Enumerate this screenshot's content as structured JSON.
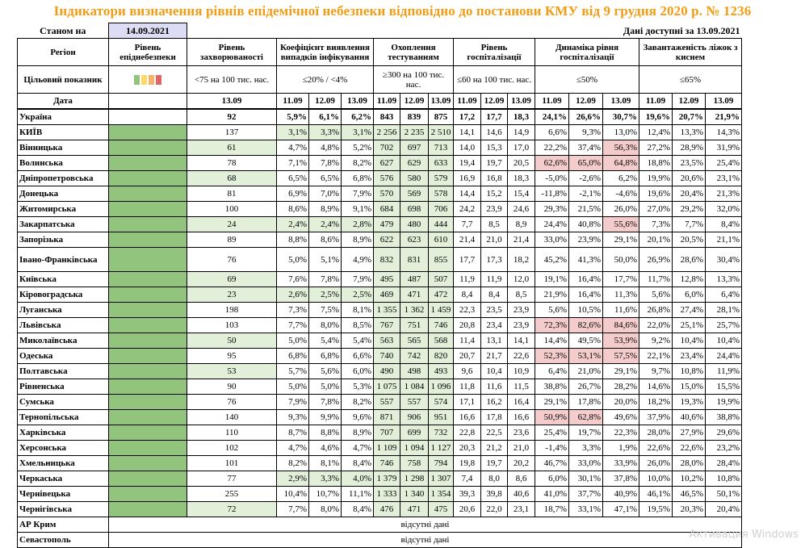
{
  "title": "Індикатори визначення рівнів епідемічної небезпеки відповідно до постанови КМУ від 9 грудня 2020 р. № 1236",
  "as_of_label": "Станом на",
  "as_of_date": "14.09.2021",
  "data_available": "Дані доступні за 13.09.2021",
  "headers": {
    "region": "Регіон",
    "level": "Рівень епіднебезпеки",
    "incidence": "Рівень захворюваності",
    "detection": "Коефіцієнт виявлення випадків інфікування",
    "testing": "Охоплення тестуванням",
    "hosp": "Рівень госпіталізації",
    "hosp_dyn": "Динаміка рівня госпіталізації",
    "oxygen": "Завантаженість ліжок з киснем"
  },
  "target": {
    "label": "Цільовий показник",
    "incidence": "<75 на 100 тис. нас.",
    "detection": "≤20% / <4%",
    "testing": "≥300 на 100 тис. нас.",
    "hosp": "≤60 на 100 тис. нас.",
    "hosp_dyn": "≤50%",
    "oxygen": "≤65%"
  },
  "date_row": {
    "label": "Дата",
    "incidence": "13.09",
    "d1": "11.09",
    "d2": "12.09",
    "d3": "13.09"
  },
  "colors": {
    "green_cell": "#e2efd9",
    "red_cell": "#f4cccc",
    "level_green": "#92c47d",
    "title": "#f39c12"
  },
  "swatches": [
    "#92c47d",
    "#ffd966",
    "#f6b26b",
    "#e06666"
  ],
  "unavailable": "відсутні дані",
  "rows": [
    {
      "region": "Україна",
      "bold": true,
      "inc": "92",
      "det": [
        "5,9%",
        "6,1%",
        "6,2%"
      ],
      "test": [
        "843",
        "839",
        "875"
      ],
      "hosp": [
        "17,2",
        "17,7",
        "18,3"
      ],
      "dyn": [
        "24,1%",
        "26,6%",
        "30,7%"
      ],
      "oxy": [
        "19,6%",
        "20,7%",
        "21,9%"
      ],
      "total": true
    },
    {
      "region": "КИЇВ",
      "inc": "137",
      "det": [
        "3,1%",
        "3,3%",
        "3,1%"
      ],
      "detg": [
        1,
        1,
        1
      ],
      "test": [
        "2 256",
        "2 235",
        "2 510"
      ],
      "hosp": [
        "14,1",
        "14,6",
        "14,9"
      ],
      "dyn": [
        "6,6%",
        "9,3%",
        "13,0%"
      ],
      "oxy": [
        "12,4%",
        "13,3%",
        "14,3%"
      ]
    },
    {
      "region": "Вінницька",
      "inc": "61",
      "incg": 1,
      "det": [
        "4,7%",
        "4,8%",
        "5,2%"
      ],
      "test": [
        "702",
        "697",
        "713"
      ],
      "hosp": [
        "14,0",
        "15,3",
        "17,0"
      ],
      "dyn": [
        "22,2%",
        "37,4%",
        "56,3%"
      ],
      "dynr": [
        0,
        0,
        1
      ],
      "oxy": [
        "27,2%",
        "28,9%",
        "31,9%"
      ]
    },
    {
      "region": "Волинська",
      "inc": "78",
      "det": [
        "7,1%",
        "7,8%",
        "8,2%"
      ],
      "test": [
        "627",
        "629",
        "633"
      ],
      "hosp": [
        "19,4",
        "19,7",
        "20,5"
      ],
      "dyn": [
        "62,6%",
        "65,0%",
        "64,8%"
      ],
      "dynr": [
        1,
        1,
        1
      ],
      "oxy": [
        "18,8%",
        "23,5%",
        "25,4%"
      ]
    },
    {
      "region": "Дніпропетровська",
      "inc": "68",
      "incg": 1,
      "det": [
        "6,5%",
        "6,5%",
        "6,8%"
      ],
      "test": [
        "576",
        "580",
        "579"
      ],
      "hosp": [
        "16,9",
        "16,8",
        "18,3"
      ],
      "dyn": [
        "-5,0%",
        "-2,6%",
        "6,2%"
      ],
      "oxy": [
        "19,9%",
        "20,6%",
        "23,1%"
      ]
    },
    {
      "region": "Донецька",
      "inc": "81",
      "det": [
        "6,9%",
        "7,0%",
        "7,9%"
      ],
      "test": [
        "570",
        "569",
        "578"
      ],
      "hosp": [
        "14,4",
        "15,2",
        "15,4"
      ],
      "dyn": [
        "-11,8%",
        "-2,1%",
        "-4,6%"
      ],
      "oxy": [
        "19,6%",
        "20,4%",
        "21,3%"
      ]
    },
    {
      "region": "Житомирська",
      "inc": "100",
      "det": [
        "8,6%",
        "8,9%",
        "9,1%"
      ],
      "test": [
        "684",
        "698",
        "706"
      ],
      "hosp": [
        "24,2",
        "23,9",
        "24,6"
      ],
      "dyn": [
        "29,3%",
        "21,5%",
        "26,0%"
      ],
      "oxy": [
        "27,0%",
        "29,2%",
        "32,0%"
      ]
    },
    {
      "region": "Закарпатська",
      "inc": "24",
      "incg": 1,
      "det": [
        "2,4%",
        "2,4%",
        "2,8%"
      ],
      "detg": [
        1,
        1,
        1
      ],
      "test": [
        "479",
        "480",
        "444"
      ],
      "hosp": [
        "7,7",
        "8,5",
        "8,9"
      ],
      "dyn": [
        "24,4%",
        "40,8%",
        "55,6%"
      ],
      "dynr": [
        0,
        0,
        1
      ],
      "oxy": [
        "7,3%",
        "7,7%",
        "8,4%"
      ]
    },
    {
      "region": "Запорізька",
      "inc": "89",
      "det": [
        "8,8%",
        "8,6%",
        "8,9%"
      ],
      "test": [
        "622",
        "623",
        "610"
      ],
      "hosp": [
        "21,4",
        "21,0",
        "21,4"
      ],
      "dyn": [
        "33,0%",
        "23,9%",
        "29,1%"
      ],
      "oxy": [
        "20,1%",
        "20,5%",
        "21,1%"
      ]
    },
    {
      "region": "Івано-Франківська",
      "tall": true,
      "inc": "76",
      "det": [
        "5,0%",
        "5,1%",
        "4,9%"
      ],
      "test": [
        "832",
        "831",
        "855"
      ],
      "hosp": [
        "17,7",
        "17,3",
        "18,2"
      ],
      "dyn": [
        "45,2%",
        "41,3%",
        "50,0%"
      ],
      "oxy": [
        "26,9%",
        "28,6%",
        "30,4%"
      ]
    },
    {
      "region": "Київська",
      "inc": "69",
      "incg": 1,
      "det": [
        "7,6%",
        "7,8%",
        "7,9%"
      ],
      "test": [
        "495",
        "487",
        "507"
      ],
      "hosp": [
        "11,9",
        "11,9",
        "12,0"
      ],
      "dyn": [
        "19,1%",
        "16,4%",
        "17,7%"
      ],
      "oxy": [
        "11,7%",
        "12,8%",
        "13,3%"
      ]
    },
    {
      "region": "Кіровоградська",
      "inc": "23",
      "incg": 1,
      "det": [
        "2,6%",
        "2,5%",
        "2,5%"
      ],
      "detg": [
        1,
        1,
        1
      ],
      "test": [
        "469",
        "471",
        "472"
      ],
      "hosp": [
        "8,4",
        "8,4",
        "8,5"
      ],
      "dyn": [
        "21,9%",
        "16,4%",
        "11,3%"
      ],
      "oxy": [
        "5,6%",
        "6,0%",
        "6,4%"
      ]
    },
    {
      "region": "Луганська",
      "inc": "198",
      "det": [
        "7,3%",
        "7,5%",
        "8,1%"
      ],
      "test": [
        "1 355",
        "1 362",
        "1 459"
      ],
      "hosp": [
        "22,3",
        "23,5",
        "23,9"
      ],
      "dyn": [
        "5,6%",
        "10,5%",
        "11,6%"
      ],
      "oxy": [
        "26,8%",
        "27,4%",
        "28,1%"
      ]
    },
    {
      "region": "Львівська",
      "inc": "103",
      "det": [
        "7,7%",
        "8,0%",
        "8,5%"
      ],
      "test": [
        "767",
        "751",
        "746"
      ],
      "hosp": [
        "20,8",
        "23,4",
        "23,9"
      ],
      "dyn": [
        "72,3%",
        "82,6%",
        "84,6%"
      ],
      "dynr": [
        1,
        1,
        1
      ],
      "oxy": [
        "22,0%",
        "25,1%",
        "25,7%"
      ]
    },
    {
      "region": "Миколаївська",
      "inc": "50",
      "incg": 1,
      "det": [
        "5,0%",
        "5,4%",
        "5,4%"
      ],
      "test": [
        "563",
        "565",
        "568"
      ],
      "hosp": [
        "11,4",
        "13,1",
        "14,1"
      ],
      "dyn": [
        "14,4%",
        "49,5%",
        "53,9%"
      ],
      "dynr": [
        0,
        0,
        1
      ],
      "oxy": [
        "9,2%",
        "10,4%",
        "10,4%"
      ]
    },
    {
      "region": "Одеська",
      "inc": "95",
      "det": [
        "6,8%",
        "6,8%",
        "6,6%"
      ],
      "test": [
        "740",
        "742",
        "820"
      ],
      "hosp": [
        "20,7",
        "21,7",
        "22,6"
      ],
      "dyn": [
        "52,3%",
        "53,1%",
        "57,5%"
      ],
      "dynr": [
        1,
        1,
        1
      ],
      "oxy": [
        "22,1%",
        "23,4%",
        "24,4%"
      ]
    },
    {
      "region": "Полтавська",
      "inc": "53",
      "incg": 1,
      "det": [
        "5,7%",
        "5,6%",
        "6,0%"
      ],
      "test": [
        "490",
        "498",
        "493"
      ],
      "hosp": [
        "9,6",
        "10,4",
        "10,9"
      ],
      "dyn": [
        "6,4%",
        "21,0%",
        "29,1%"
      ],
      "oxy": [
        "9,7%",
        "10,8%",
        "11,9%"
      ]
    },
    {
      "region": "Рівненська",
      "inc": "90",
      "det": [
        "5,0%",
        "5,0%",
        "5,3%"
      ],
      "test": [
        "1 075",
        "1 084",
        "1 096"
      ],
      "hosp": [
        "11,8",
        "11,6",
        "11,5"
      ],
      "dyn": [
        "38,8%",
        "26,7%",
        "28,2%"
      ],
      "oxy": [
        "14,6%",
        "15,0%",
        "15,5%"
      ]
    },
    {
      "region": "Сумська",
      "inc": "76",
      "det": [
        "7,9%",
        "7,8%",
        "8,2%"
      ],
      "test": [
        "557",
        "557",
        "574"
      ],
      "hosp": [
        "17,1",
        "16,2",
        "16,4"
      ],
      "dyn": [
        "29,1%",
        "17,8%",
        "20,0%"
      ],
      "oxy": [
        "18,2%",
        "19,3%",
        "19,9%"
      ]
    },
    {
      "region": "Тернопільська",
      "inc": "140",
      "det": [
        "9,3%",
        "9,9%",
        "9,6%"
      ],
      "test": [
        "871",
        "906",
        "951"
      ],
      "hosp": [
        "16,6",
        "17,8",
        "16,6"
      ],
      "dyn": [
        "50,9%",
        "62,8%",
        "49,6%"
      ],
      "dynr": [
        1,
        1,
        0
      ],
      "oxy": [
        "37,9%",
        "40,6%",
        "38,8%"
      ]
    },
    {
      "region": "Харківська",
      "inc": "110",
      "det": [
        "8,7%",
        "8,8%",
        "8,9%"
      ],
      "test": [
        "707",
        "699",
        "732"
      ],
      "hosp": [
        "22,8",
        "22,5",
        "23,6"
      ],
      "dyn": [
        "25,4%",
        "19,7%",
        "22,3%"
      ],
      "oxy": [
        "28,0%",
        "27,9%",
        "29,6%"
      ]
    },
    {
      "region": "Херсонська",
      "inc": "102",
      "det": [
        "4,7%",
        "4,6%",
        "4,7%"
      ],
      "test": [
        "1 109",
        "1 094",
        "1 127"
      ],
      "hosp": [
        "20,3",
        "21,2",
        "21,0"
      ],
      "dyn": [
        "-1,4%",
        "3,3%",
        "1,9%"
      ],
      "oxy": [
        "22,6%",
        "22,6%",
        "23,2%"
      ]
    },
    {
      "region": "Хмельницька",
      "inc": "101",
      "det": [
        "8,2%",
        "8,1%",
        "8,4%"
      ],
      "test": [
        "746",
        "758",
        "794"
      ],
      "hosp": [
        "19,8",
        "19,7",
        "20,2"
      ],
      "dyn": [
        "46,7%",
        "33,0%",
        "33,9%"
      ],
      "oxy": [
        "26,0%",
        "28,0%",
        "28,4%"
      ]
    },
    {
      "region": "Черкаська",
      "inc": "77",
      "det": [
        "2,9%",
        "3,3%",
        "4,0%"
      ],
      "detg": [
        1,
        1,
        1
      ],
      "test": [
        "1 379",
        "1 298",
        "1 307"
      ],
      "hosp": [
        "7,4",
        "8,0",
        "8,6"
      ],
      "dyn": [
        "6,0%",
        "30,1%",
        "37,8%"
      ],
      "oxy": [
        "10,0%",
        "10,2%",
        "10,8%"
      ]
    },
    {
      "region": "Чернівецька",
      "inc": "255",
      "det": [
        "10,4%",
        "10,7%",
        "11,1%"
      ],
      "test": [
        "1 333",
        "1 340",
        "1 354"
      ],
      "hosp": [
        "39,3",
        "39,8",
        "40,6"
      ],
      "dyn": [
        "41,0%",
        "37,7%",
        "40,9%"
      ],
      "oxy": [
        "46,1%",
        "46,5%",
        "50,1%"
      ]
    },
    {
      "region": "Чернігівська",
      "inc": "72",
      "incg": 1,
      "det": [
        "7,7%",
        "8,0%",
        "8,4%"
      ],
      "test": [
        "476",
        "471",
        "475"
      ],
      "hosp": [
        "20,6",
        "22,0",
        "23,1"
      ],
      "dyn": [
        "18,7%",
        "33,1%",
        "47,1%"
      ],
      "oxy": [
        "19,5%",
        "20,3%",
        "20,4%"
      ]
    }
  ],
  "unavailable_rows": [
    "АР Крим",
    "Севастополь"
  ],
  "watermark": "Активация Windows"
}
